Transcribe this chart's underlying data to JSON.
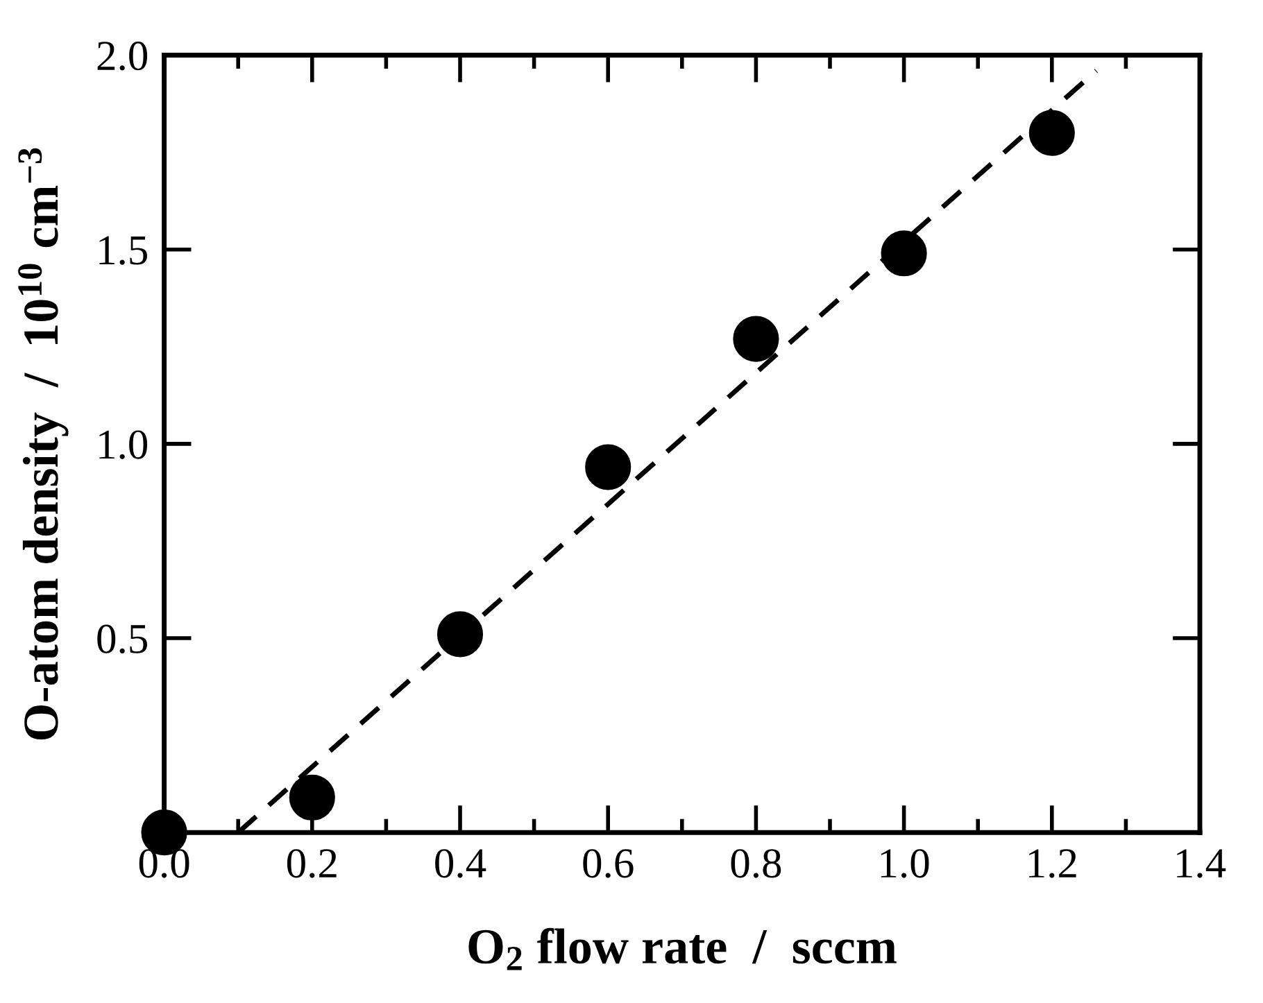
{
  "chart_data": {
    "type": "scatter",
    "xlabel": "O$_{2}$ flow rate  /  sccm",
    "ylabel": "O-atom density  /  10$^{10}$ cm$^{−3}$",
    "xlim": [
      0,
      1.4
    ],
    "ylim": [
      0,
      2.0
    ],
    "xticks": [
      {
        "value": 0,
        "label": "0.0"
      },
      {
        "value": 0.2,
        "label": "0.2"
      },
      {
        "value": 0.4,
        "label": "0.4"
      },
      {
        "value": 0.6,
        "label": "0.6"
      },
      {
        "value": 0.8,
        "label": "0.8"
      },
      {
        "value": 1.0,
        "label": "1.0"
      },
      {
        "value": 1.2,
        "label": "1.2"
      },
      {
        "value": 1.4,
        "label": "1.4"
      }
    ],
    "yticks": [
      {
        "value": 0.5,
        "label": "0.5"
      },
      {
        "value": 1.0,
        "label": "1.0"
      },
      {
        "value": 1.5,
        "label": "1.5"
      },
      {
        "value": 2.0,
        "label": "2.0"
      }
    ],
    "grid": false,
    "legend": false,
    "series": [
      {
        "color": "#000000",
        "marker": "circle",
        "x": [
          0,
          0.2,
          0.4,
          0.6,
          0.8,
          1.0,
          1.2
        ],
        "values": [
          0,
          0.09,
          0.51,
          0.94,
          1.27,
          1.49,
          1.8
        ]
      },
      {
        "type": "line",
        "color": "#000000",
        "line_style": "dashed",
        "marker": "none",
        "x": [
          0.1,
          1.26
        ],
        "values": [
          0,
          1.96
        ]
      }
    ]
  }
}
